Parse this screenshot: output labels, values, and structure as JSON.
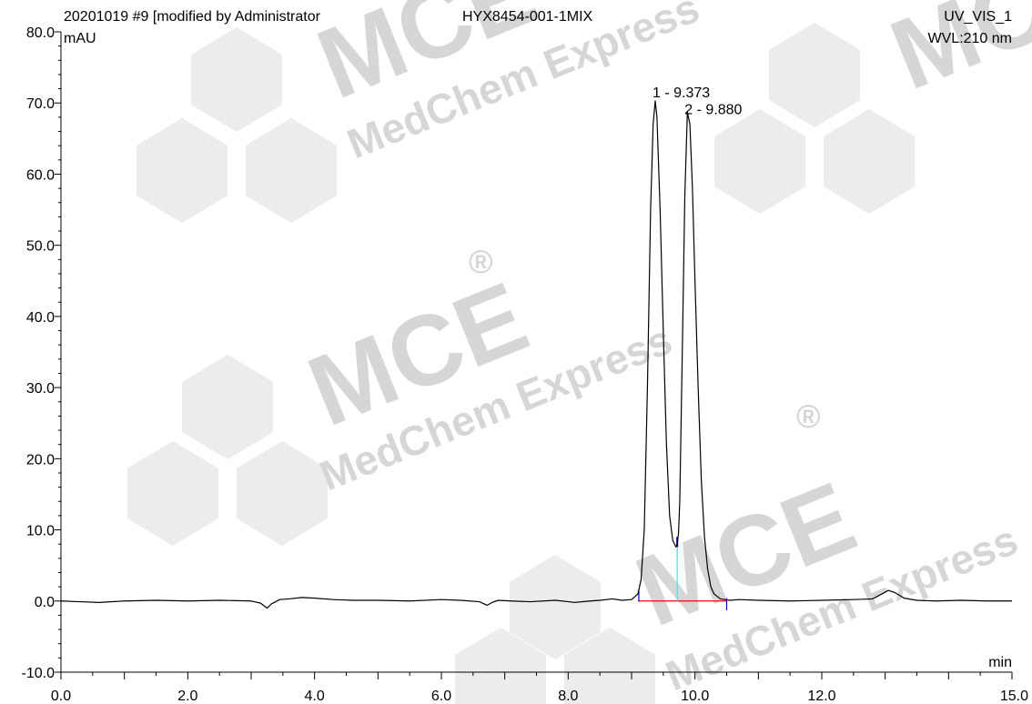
{
  "header": {
    "sample": "20201019 #9 [modified by Administrator",
    "name": "HYX8454-001-1MIX",
    "channel": "UV_VIS_1",
    "wavelength": "WVL:210 nm"
  },
  "watermark": {
    "brand": "MCE",
    "tagline": "MedChem Express",
    "registered": "®"
  },
  "chart_data": {
    "type": "line",
    "xlabel": "min",
    "ylabel": "mAU",
    "xlim": [
      0,
      15
    ],
    "ylim": [
      -10,
      80
    ],
    "x_ticks": [
      0,
      2,
      4,
      6,
      8,
      10,
      12,
      15
    ],
    "x_tick_labels": [
      "0.0",
      "2.0",
      "4.0",
      "6.0",
      "8.0",
      "10.0",
      "12.0",
      "15.0"
    ],
    "y_ticks": [
      -10,
      0,
      10,
      20,
      30,
      40,
      50,
      60,
      70,
      80
    ],
    "y_tick_labels": [
      "-10.0",
      "0.0",
      "10.0",
      "20.0",
      "30.0",
      "40.0",
      "50.0",
      "60.0",
      "70.0",
      "80.0"
    ],
    "grid": false,
    "series": [
      {
        "x": [
          0.0,
          0.3,
          0.6,
          1.0,
          1.5,
          2.0,
          2.5,
          3.0,
          3.15,
          3.25,
          3.32,
          3.45,
          3.6,
          3.8,
          4.0,
          4.3,
          4.6,
          5.0,
          5.5,
          6.0,
          6.3,
          6.6,
          6.72,
          6.8,
          6.9,
          7.1,
          7.4,
          7.8,
          8.1,
          8.35,
          8.5,
          8.7,
          8.85,
          9.0,
          9.1,
          9.15,
          9.2,
          9.25,
          9.3,
          9.34,
          9.373,
          9.4,
          9.45,
          9.5,
          9.55,
          9.6,
          9.65,
          9.7,
          9.72,
          9.74,
          9.76,
          9.8,
          9.84,
          9.88,
          9.92,
          9.96,
          10.0,
          10.05,
          10.1,
          10.15,
          10.2,
          10.25,
          10.3,
          10.4,
          10.55,
          10.7,
          11.0,
          11.5,
          12.0,
          12.5,
          12.8,
          12.95,
          13.05,
          13.15,
          13.3,
          13.5,
          13.8,
          14.2,
          14.6,
          15.0
        ],
        "y": [
          0.0,
          -0.1,
          -0.2,
          0.0,
          0.1,
          0.0,
          0.1,
          0.0,
          -0.3,
          -1.0,
          -0.4,
          0.2,
          0.3,
          0.5,
          0.4,
          0.2,
          0.1,
          0.1,
          0.0,
          0.2,
          0.1,
          -0.1,
          -0.6,
          -0.2,
          0.1,
          0.0,
          -0.1,
          0.1,
          -0.2,
          0.0,
          0.1,
          0.3,
          0.1,
          0.2,
          1.0,
          3.0,
          10.0,
          30.0,
          55.0,
          67.0,
          70.3,
          68.0,
          55.0,
          38.0,
          22.0,
          12.0,
          8.5,
          7.6,
          8.0,
          9.5,
          14.0,
          35.0,
          57.0,
          68.7,
          67.0,
          58.0,
          45.0,
          30.0,
          17.0,
          9.0,
          4.5,
          2.0,
          1.0,
          0.3,
          0.1,
          0.2,
          0.1,
          0.0,
          0.1,
          0.2,
          0.3,
          1.0,
          1.5,
          1.2,
          0.4,
          0.1,
          0.0,
          0.1,
          0.0,
          0.0
        ]
      }
    ],
    "peaks": [
      {
        "label": "1 - 9.373",
        "rt": 9.373,
        "height": 70.3
      },
      {
        "label": "2 - 9.880",
        "rt": 9.88,
        "height": 68.7
      }
    ],
    "baseline": {
      "start": 9.1,
      "end": 10.5,
      "valley": 9.72
    },
    "colors": {
      "trace": "#000000",
      "baseline": "#ff0000",
      "valley_drop": "#00ffff",
      "peak_marks": "#0000cc",
      "axes": "#000000"
    }
  }
}
